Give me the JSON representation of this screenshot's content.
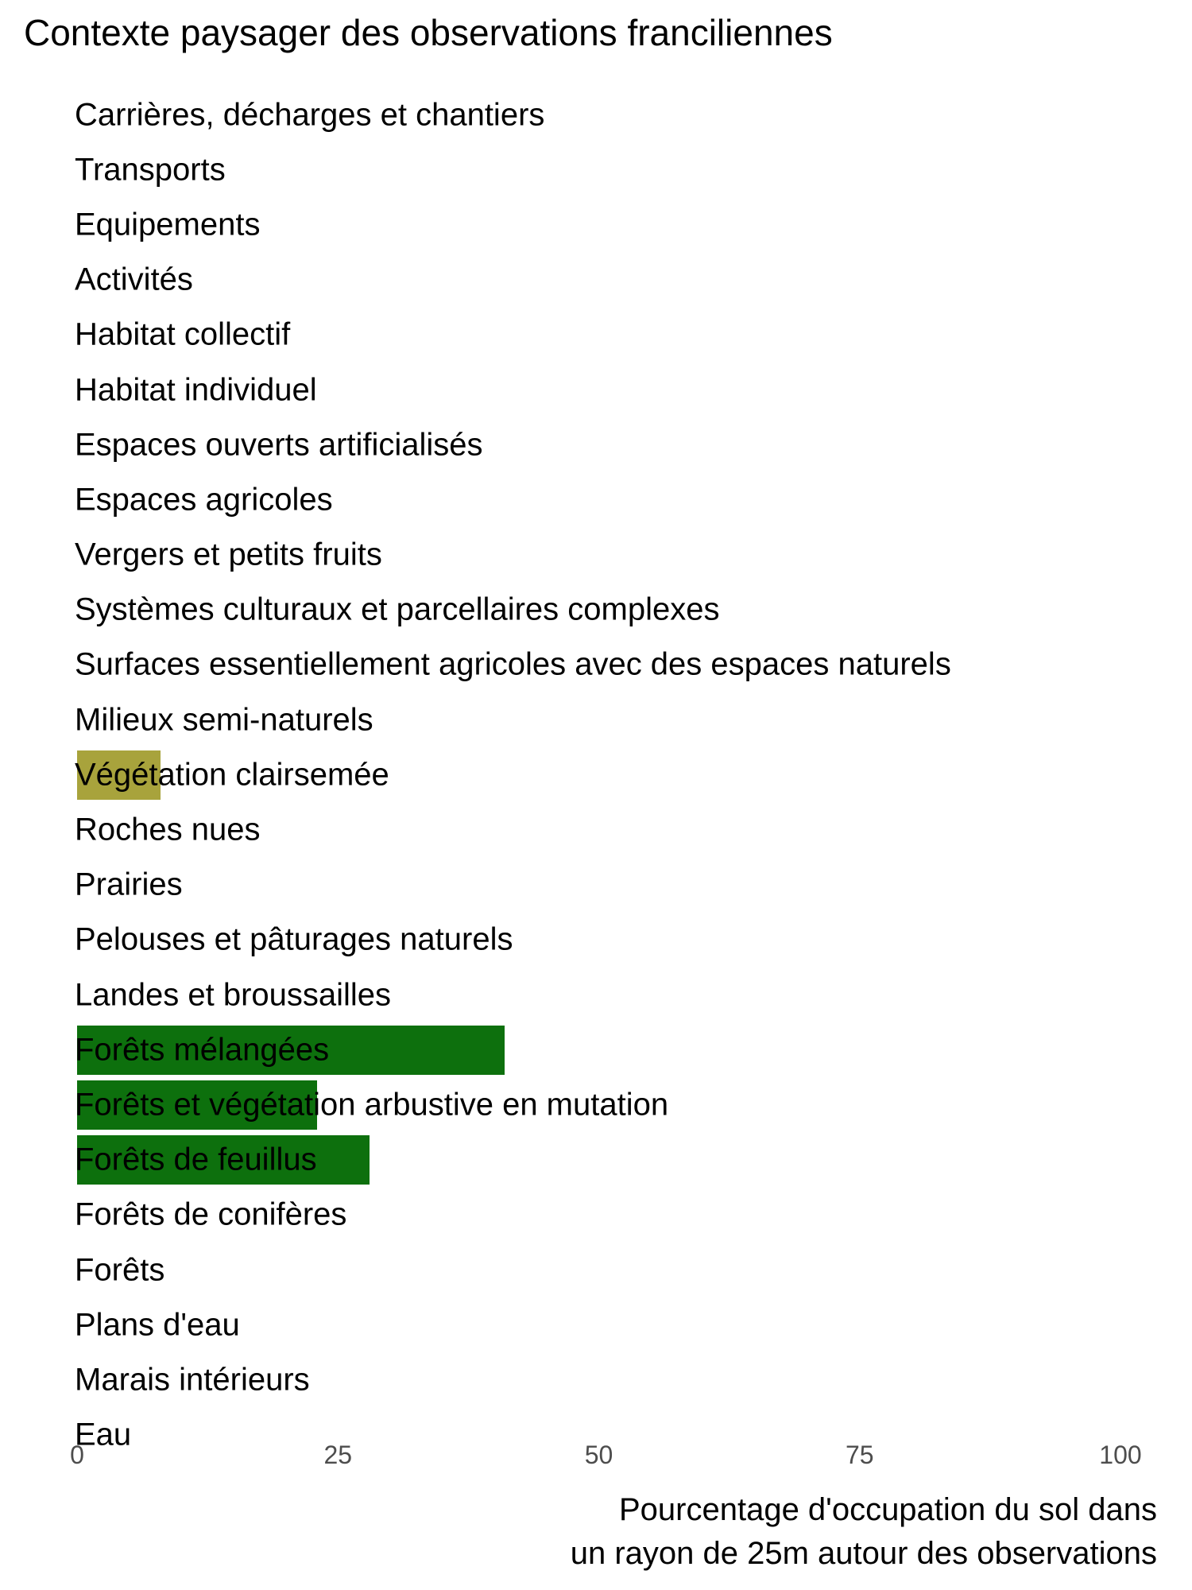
{
  "chart_data": {
    "type": "bar",
    "orientation": "horizontal",
    "title": "Contexte paysager des observations franciliennes",
    "xlabel": "Pourcentage d'occupation du sol dans un rayon de 25m autour des observations",
    "xlabel_lines": [
      "Pourcentage d'occupation du sol dans",
      "un rayon de 25m autour des observations"
    ],
    "ylabel": "",
    "xlim": [
      0,
      100
    ],
    "xticks": [
      0,
      25,
      50,
      75,
      100
    ],
    "grid": false,
    "legend": false,
    "colors": {
      "forest_green": "#0d700d",
      "olive": "#a8a33c",
      "axis_tick_text": "#4d4d4d",
      "label_text": "#000000",
      "background": "#ffffff"
    },
    "categories": [
      "Carrières, décharges et chantiers",
      "Transports",
      "Equipements",
      "Activités",
      "Habitat collectif",
      "Habitat individuel",
      "Espaces ouverts artificialisés",
      "Espaces agricoles",
      "Vergers et petits fruits",
      "Systèmes culturaux et parcellaires complexes",
      "Surfaces essentiellement agricoles avec des espaces naturels",
      "Milieux semi-naturels",
      "Végétation clairsemée",
      "Roches nues",
      "Prairies",
      "Pelouses et pâturages naturels",
      "Landes et broussailles",
      "Forêts mélangées",
      "Forêts et végétation arbustive en mutation",
      "Forêts de feuillus",
      "Forêts de conifères",
      "Forêts",
      "Plans d'eau",
      "Marais intérieurs",
      "Eau"
    ],
    "values": [
      0,
      0,
      0,
      0,
      0,
      0,
      0,
      0,
      0,
      0,
      0,
      0,
      8,
      0,
      0,
      0,
      0,
      41,
      23,
      28,
      0,
      0,
      0,
      0,
      0
    ],
    "bar_colors": [
      null,
      null,
      null,
      null,
      null,
      null,
      null,
      null,
      null,
      null,
      null,
      null,
      "#a8a33c",
      null,
      null,
      null,
      null,
      "#0d700d",
      "#0d700d",
      "#0d700d",
      null,
      null,
      null,
      null,
      null
    ]
  }
}
